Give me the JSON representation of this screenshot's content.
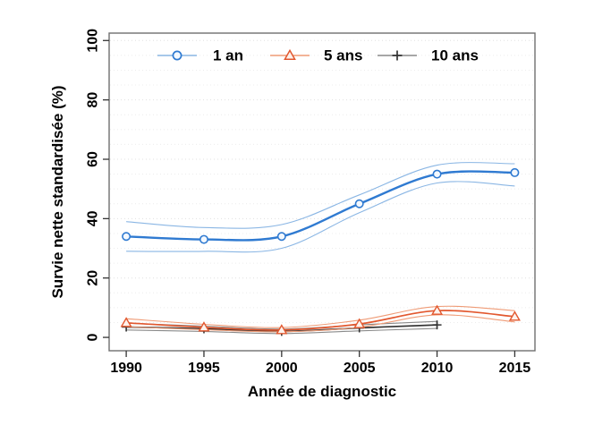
{
  "figure": {
    "background_color": "#ffffff",
    "frame_color": "#6f6f6f",
    "grid_color": "#e8e8e8",
    "tick_color": "#333333"
  },
  "chart_data": {
    "type": "line",
    "title": "",
    "xlabel": "Année de diagnostic",
    "ylabel": "Survie nette standardisée (%)",
    "x": [
      1990,
      1995,
      2000,
      2005,
      2010,
      2015
    ],
    "x_tick_labels": [
      "1990",
      "1995",
      "2000",
      "2005",
      "2010",
      "2015"
    ],
    "y_ticks": [
      0,
      20,
      40,
      60,
      80,
      100
    ],
    "y_tick_labels": [
      "0",
      "20",
      "40",
      "60",
      "80",
      "100"
    ],
    "xlim": [
      1988.9,
      2016.3
    ],
    "ylim": [
      -4.5,
      102.5
    ],
    "grid": {
      "show": true,
      "orientation": "horizontal",
      "interval": 5,
      "style": "dotted"
    },
    "legend": {
      "position": "top-inside",
      "orientation": "horizontal"
    },
    "series": [
      {
        "name": "1 an",
        "marker": "circle",
        "color": "#2f7ad1",
        "ci_color": "#8ab6e4",
        "values": [
          34,
          33,
          34,
          45,
          55,
          55.5
        ],
        "ci_upper": [
          39,
          37,
          38,
          48,
          58,
          58.5
        ],
        "ci_lower": [
          29,
          29,
          30,
          42,
          52,
          51
        ],
        "end_cap": false
      },
      {
        "name": "5 ans",
        "marker": "triangle",
        "color": "#e2582f",
        "ci_color": "#ef9b76",
        "values": [
          4.9,
          3.4,
          2.5,
          4.5,
          9,
          7
        ],
        "ci_upper": [
          6.3,
          4.4,
          3.3,
          5.8,
          10.4,
          9
        ],
        "ci_lower": [
          3.6,
          2.6,
          1.9,
          3.4,
          7.6,
          5.2
        ],
        "end_cap": false
      },
      {
        "name": "10 ans",
        "marker": "plus",
        "color": "#333333",
        "ci_color": "#8a8a8a",
        "x": [
          1990,
          1995,
          2000,
          2005,
          2010
        ],
        "values": [
          3.5,
          2.9,
          2,
          3.2,
          4.2
        ],
        "ci_upper": [
          4.8,
          3.8,
          2.8,
          4.2,
          5.4
        ],
        "ci_lower": [
          2.5,
          2,
          1.3,
          2.2,
          3
        ],
        "end_cap": true
      }
    ]
  }
}
